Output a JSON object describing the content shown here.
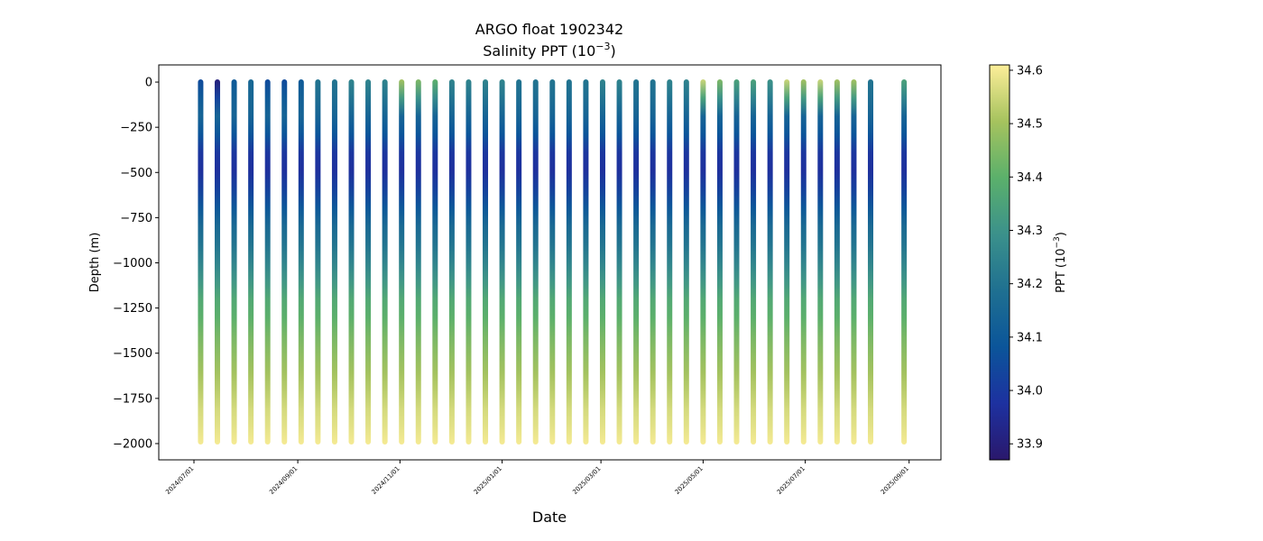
{
  "chart_data": {
    "type": "scatter",
    "title": "ARGO float 1902342",
    "subtitle": "Salinity PPT (10",
    "subtitle_exp": "−3",
    "subtitle_close": ")",
    "xlabel": "Date",
    "ylabel": "Depth (m)",
    "colorbar_label": "PPT (10",
    "colorbar_label_exp": "−3",
    "colorbar_label_close": ")",
    "xlim": [
      "2024-06-10",
      "2025-09-20"
    ],
    "ylim": [
      -2090,
      95
    ],
    "x_ticks": [
      "2024/07/01",
      "2024/09/01",
      "2024/11/01",
      "2025/01/01",
      "2025/03/01",
      "2025/05/01",
      "2025/07/01",
      "2025/09/01"
    ],
    "y_ticks": [
      0,
      -250,
      -500,
      -750,
      -1000,
      -1250,
      -1500,
      -1750,
      -2000
    ],
    "y_tick_labels": [
      "0",
      "−250",
      "−500",
      "−750",
      "−1000",
      "−1250",
      "−1500",
      "−1750",
      "−2000"
    ],
    "colorbar": {
      "min": 33.87,
      "max": 34.61,
      "ticks": [
        33.9,
        34.0,
        34.1,
        34.2,
        34.3,
        34.4,
        34.5,
        34.6
      ],
      "tick_labels": [
        "33.9",
        "34.0",
        "34.1",
        "34.2",
        "34.3",
        "34.4",
        "34.5",
        "34.6"
      ],
      "colormap": "haline",
      "colors": [
        "#2a186c",
        "#1d31a0",
        "#0b559a",
        "#1f7091",
        "#3b918b",
        "#5bb06b",
        "#a6c35e",
        "#fdee99"
      ]
    },
    "profile_dates": [
      "2024-07-05",
      "2024-07-15",
      "2024-07-25",
      "2024-08-04",
      "2024-08-14",
      "2024-08-24",
      "2024-09-03",
      "2024-09-13",
      "2024-09-23",
      "2024-10-03",
      "2024-10-13",
      "2024-10-23",
      "2024-11-02",
      "2024-11-12",
      "2024-11-22",
      "2024-12-02",
      "2024-12-12",
      "2024-12-22",
      "2025-01-01",
      "2025-01-11",
      "2025-01-21",
      "2025-01-31",
      "2025-02-10",
      "2025-02-20",
      "2025-03-02",
      "2025-03-12",
      "2025-03-22",
      "2025-04-01",
      "2025-04-11",
      "2025-04-21",
      "2025-05-01",
      "2025-05-11",
      "2025-05-21",
      "2025-05-31",
      "2025-06-10",
      "2025-06-20",
      "2025-06-30",
      "2025-07-10",
      "2025-07-20",
      "2025-07-30",
      "2025-08-09",
      "2025-08-29"
    ],
    "max_depth": -1990,
    "salinity_profile": {
      "depths": [
        0,
        -100,
        -200,
        -300,
        -400,
        -500,
        -600,
        -700,
        -800,
        -900,
        -1000,
        -1100,
        -1200,
        -1300,
        -1400,
        -1500,
        -1600,
        -1700,
        -1800,
        -1900,
        -1990
      ],
      "salinity": [
        34.18,
        34.15,
        34.14,
        34.08,
        33.99,
        33.97,
        34.02,
        34.09,
        34.16,
        34.2,
        34.25,
        34.31,
        34.37,
        34.4,
        34.44,
        34.47,
        34.5,
        34.53,
        34.56,
        34.58,
        34.6
      ]
    },
    "surface_salinity": [
      34.05,
      33.9,
      34.1,
      34.15,
      34.05,
      34.05,
      34.1,
      34.2,
      34.2,
      34.25,
      34.25,
      34.25,
      34.5,
      34.45,
      34.4,
      34.25,
      34.25,
      34.25,
      34.25,
      34.2,
      34.2,
      34.2,
      34.2,
      34.2,
      34.25,
      34.25,
      34.2,
      34.2,
      34.25,
      34.25,
      34.55,
      34.45,
      34.35,
      34.35,
      34.3,
      34.55,
      34.5,
      34.55,
      34.5,
      34.5,
      34.2,
      34.35
    ]
  }
}
